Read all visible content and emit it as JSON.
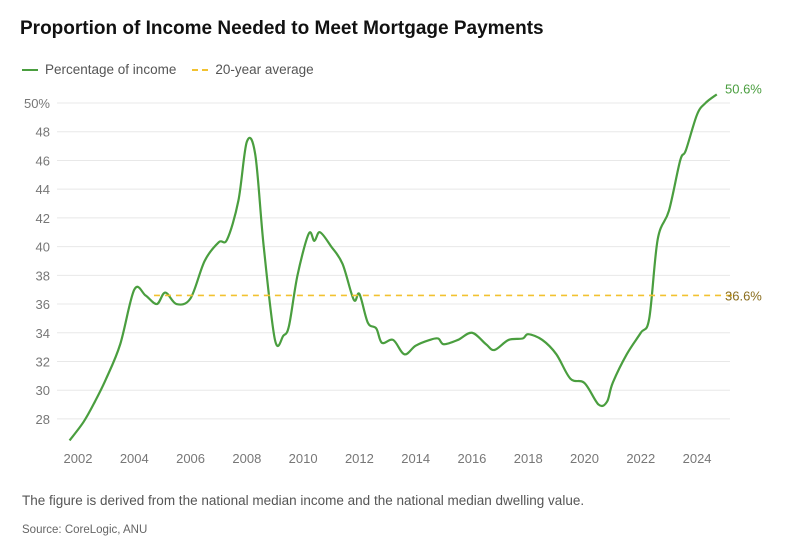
{
  "chart_data": {
    "type": "line",
    "title": "Proportion of Income Needed to Meet Mortgage Payments",
    "legend": [
      "Percentage of income",
      "20-year average"
    ],
    "legend_placement": "top-left",
    "grid": true,
    "xlim": [
      2001.6,
      2025.4
    ],
    "ylim": [
      26,
      51
    ],
    "x_ticks": [
      "2002",
      "2004",
      "2006",
      "2008",
      "2010",
      "2012",
      "2014",
      "2016",
      "2018",
      "2020",
      "2022",
      "2024"
    ],
    "y_ticks": [
      "28",
      "30",
      "32",
      "34",
      "36",
      "38",
      "40",
      "42",
      "44",
      "46",
      "48",
      "50%"
    ],
    "series": [
      {
        "name": "Percentage of income",
        "color": "#4a9e3f",
        "x": [
          2001.7,
          2002.2,
          2002.6,
          2003,
          2003.5,
          2004,
          2004.4,
          2004.8,
          2005.1,
          2005.5,
          2006,
          2006.5,
          2007,
          2007.3,
          2007.7,
          2008,
          2008.3,
          2008.6,
          2009,
          2009.3,
          2009.5,
          2009.8,
          2010.2,
          2010.4,
          2010.6,
          2011,
          2011.4,
          2011.8,
          2012,
          2012.3,
          2012.6,
          2012.8,
          2013.2,
          2013.6,
          2014,
          2014.5,
          2014.8,
          2015,
          2015.5,
          2016,
          2016.5,
          2016.8,
          2017.3,
          2017.8,
          2018,
          2018.5,
          2019,
          2019.5,
          2020,
          2020.5,
          2020.8,
          2021,
          2021.5,
          2022,
          2022.3,
          2022.6,
          2023,
          2023.4,
          2023.6,
          2024,
          2024.3,
          2024.7
        ],
        "y": [
          26.5,
          27.8,
          29.2,
          30.8,
          33.2,
          37,
          36.6,
          36,
          36.8,
          36,
          36.4,
          39,
          40.3,
          40.5,
          43.2,
          47.3,
          46.4,
          40,
          33.5,
          33.8,
          34.5,
          38,
          40.9,
          40.4,
          41,
          40,
          38.8,
          36.3,
          36.7,
          34.7,
          34.3,
          33.3,
          33.5,
          32.5,
          33.1,
          33.5,
          33.6,
          33.2,
          33.5,
          34,
          33.2,
          32.8,
          33.5,
          33.6,
          33.9,
          33.5,
          32.5,
          30.8,
          30.5,
          29,
          29.2,
          30.5,
          32.5,
          34,
          35,
          40.5,
          42.5,
          46,
          46.7,
          49.2,
          50,
          50.6
        ],
        "end_label": "50.6%"
      },
      {
        "name": "20-year average",
        "color": "#f2c230",
        "dashed": true,
        "x": [
          2004.7,
          2025.3
        ],
        "y": [
          36.6,
          36.6
        ],
        "end_label": "36.6%"
      }
    ],
    "note": "The figure is derived from the national median income and the national median dwelling value.",
    "source": "Source: CoreLogic, ANU"
  }
}
